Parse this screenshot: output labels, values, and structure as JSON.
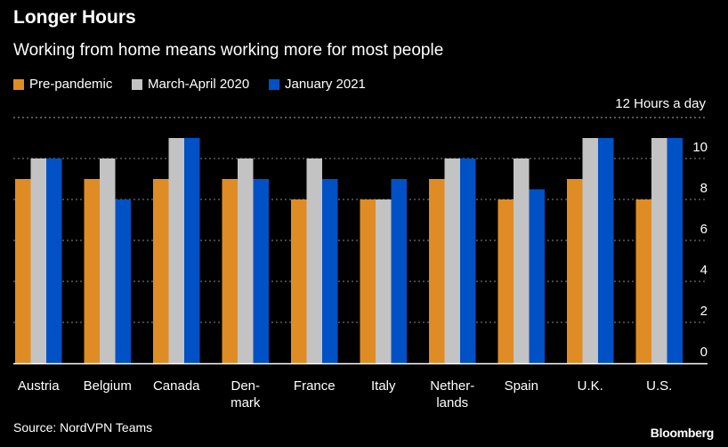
{
  "title": "Longer Hours",
  "subtitle": "Working from home means working more for most people",
  "source": "Source: NordVPN Teams",
  "logo": "Bloomberg",
  "chart_data": {
    "type": "bar",
    "unit_label": "12 Hours a day",
    "categories": [
      "Austria",
      "Belgium",
      "Canada",
      "Den-\nmark",
      "France",
      "Italy",
      "Nether-\nlands",
      "Spain",
      "U.K.",
      "U.S."
    ],
    "series": [
      {
        "name": "Pre-pandemic",
        "color": "#e08c24",
        "values": [
          9,
          9,
          9,
          9,
          8,
          8,
          9,
          8,
          9,
          8
        ]
      },
      {
        "name": "March-April 2020",
        "color": "#c3c3c3",
        "values": [
          10,
          10,
          11,
          10,
          10,
          8,
          10,
          10,
          11,
          11
        ]
      },
      {
        "name": "January 2021",
        "color": "#0051c5",
        "values": [
          10,
          8,
          11,
          9,
          9,
          9,
          10,
          8.5,
          11,
          11
        ]
      }
    ],
    "ylim": [
      0,
      12
    ],
    "yticks": [
      0,
      2,
      4,
      6,
      8,
      10
    ],
    "grid": true,
    "legend": "top-left",
    "y_axis_side": "right"
  }
}
